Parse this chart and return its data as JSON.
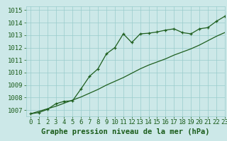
{
  "x": [
    0,
    1,
    2,
    3,
    4,
    5,
    6,
    7,
    8,
    9,
    10,
    11,
    12,
    13,
    14,
    15,
    16,
    17,
    18,
    19,
    20,
    21,
    22,
    23
  ],
  "y_main": [
    1006.7,
    1006.8,
    1007.05,
    1007.5,
    1007.7,
    1007.75,
    1008.7,
    1009.7,
    1010.3,
    1011.5,
    1012.0,
    1013.1,
    1012.4,
    1013.1,
    1013.15,
    1013.25,
    1013.4,
    1013.5,
    1013.2,
    1013.1,
    1013.5,
    1013.6,
    1014.1,
    1014.5
  ],
  "y_trend": [
    1006.7,
    1006.9,
    1007.1,
    1007.3,
    1007.55,
    1007.8,
    1008.05,
    1008.35,
    1008.65,
    1009.0,
    1009.3,
    1009.6,
    1009.95,
    1010.3,
    1010.6,
    1010.85,
    1011.1,
    1011.4,
    1011.65,
    1011.9,
    1012.2,
    1012.55,
    1012.9,
    1013.2
  ],
  "xlim": [
    -0.5,
    23
  ],
  "ylim": [
    1006.5,
    1015.3
  ],
  "yticks": [
    1007,
    1008,
    1009,
    1010,
    1011,
    1012,
    1013,
    1014,
    1015
  ],
  "xticks": [
    0,
    1,
    2,
    3,
    4,
    5,
    6,
    7,
    8,
    9,
    10,
    11,
    12,
    13,
    14,
    15,
    16,
    17,
    18,
    19,
    20,
    21,
    22,
    23
  ],
  "xlabel": "Graphe pression niveau de la mer (hPa)",
  "line_color": "#1e5e1e",
  "marker": "+",
  "bg_color": "#cce8e8",
  "grid_color": "#99cccc",
  "text_color": "#1a5c1a",
  "font_size": 6.5,
  "xlabel_fontsize": 7.5
}
